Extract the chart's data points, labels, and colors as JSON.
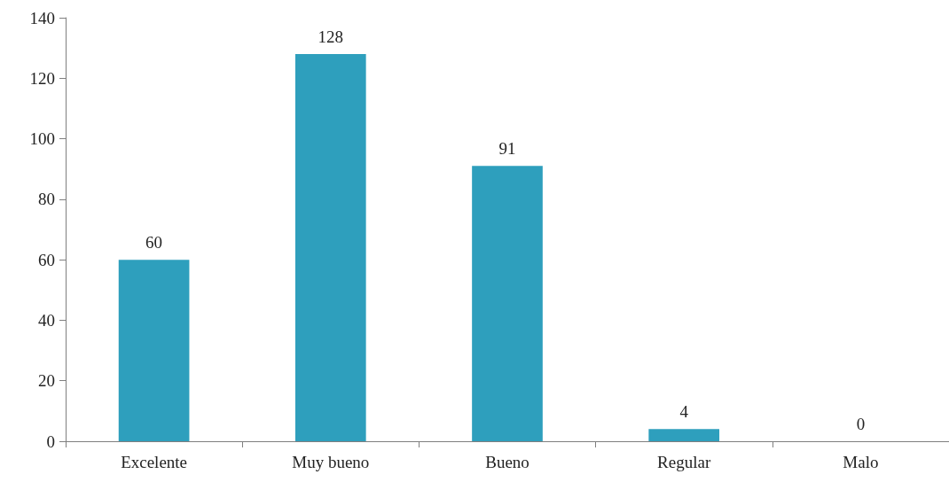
{
  "chart_data": {
    "type": "bar",
    "categories": [
      "Excelente",
      "Muy bueno",
      "Bueno",
      "Regular",
      "Malo"
    ],
    "values": [
      60,
      128,
      91,
      4,
      0
    ],
    "color": "#2e9fbd",
    "ylim": [
      0,
      140
    ],
    "yticks": [
      0,
      20,
      40,
      60,
      80,
      100,
      120,
      140
    ],
    "grid": false,
    "data_labels": true
  }
}
